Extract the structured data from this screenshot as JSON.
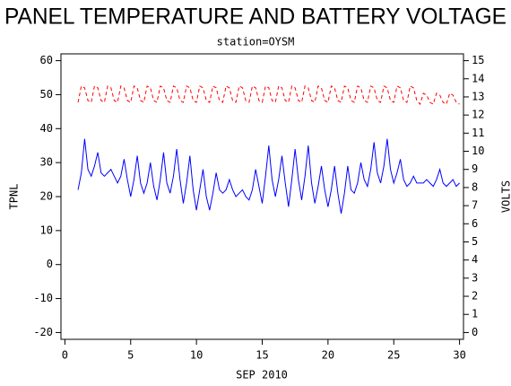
{
  "chart_data": {
    "type": "line",
    "title": "PANEL TEMPERATURE AND BATTERY VOLTAGE",
    "subtitle": "station=OYSM",
    "xlabel": "SEP 2010",
    "ylabel": "TPNL",
    "y2label": "VOLTS",
    "xlim": [
      -0.3,
      30.3
    ],
    "xticks": [
      0,
      5,
      10,
      15,
      20,
      25,
      30
    ],
    "ylim": [
      -22,
      62
    ],
    "yticks": [
      -20,
      -10,
      0,
      10,
      20,
      30,
      40,
      50,
      60
    ],
    "y2lim": [
      -0.375,
      15.375
    ],
    "y2ticks": [
      0,
      1,
      2,
      3,
      4,
      5,
      6,
      7,
      8,
      9,
      10,
      11,
      12,
      13,
      14,
      15
    ],
    "x": [
      1,
      1.25,
      1.5,
      1.75,
      2,
      2.25,
      2.5,
      2.75,
      3,
      3.25,
      3.5,
      3.75,
      4,
      4.25,
      4.5,
      4.75,
      5,
      5.25,
      5.5,
      5.75,
      6,
      6.25,
      6.5,
      6.75,
      7,
      7.25,
      7.5,
      7.75,
      8,
      8.25,
      8.5,
      8.75,
      9,
      9.25,
      9.5,
      9.75,
      10,
      10.25,
      10.5,
      10.75,
      11,
      11.25,
      11.5,
      11.75,
      12,
      12.25,
      12.5,
      12.75,
      13,
      13.25,
      13.5,
      13.75,
      14,
      14.25,
      14.5,
      14.75,
      15,
      15.25,
      15.5,
      15.75,
      16,
      16.25,
      16.5,
      16.75,
      17,
      17.25,
      17.5,
      17.75,
      18,
      18.25,
      18.5,
      18.75,
      19,
      19.25,
      19.5,
      19.75,
      20,
      20.25,
      20.5,
      20.75,
      21,
      21.25,
      21.5,
      21.75,
      22,
      22.25,
      22.5,
      22.75,
      23,
      23.25,
      23.5,
      23.75,
      24,
      24.25,
      24.5,
      24.75,
      25,
      25.25,
      25.5,
      25.75,
      26,
      26.25,
      26.5,
      26.75,
      27,
      27.25,
      27.5,
      27.75,
      28,
      28.25,
      28.5,
      28.75,
      29,
      29.25,
      29.5,
      29.75,
      30
    ],
    "series": [
      {
        "name": "TPNL",
        "color": "#0000ff",
        "dash": false,
        "values": [
          22,
          27,
          37,
          28,
          26,
          29,
          33,
          27,
          26,
          27,
          28,
          26,
          24,
          26,
          31,
          25,
          20,
          25,
          32,
          24,
          21,
          24,
          30,
          23,
          19,
          25,
          33,
          24,
          21,
          26,
          34,
          25,
          18,
          24,
          32,
          22,
          16,
          22,
          28,
          20,
          16,
          21,
          27,
          22,
          21,
          22,
          25,
          22,
          20,
          21,
          22,
          20,
          19,
          22,
          28,
          23,
          18,
          26,
          35,
          25,
          20,
          25,
          32,
          24,
          17,
          25,
          34,
          25,
          19,
          26,
          35,
          24,
          18,
          23,
          29,
          22,
          17,
          22,
          29,
          21,
          15,
          21,
          29,
          22,
          21,
          24,
          30,
          25,
          23,
          28,
          36,
          27,
          24,
          29,
          37,
          28,
          24,
          27,
          31,
          25,
          23,
          24,
          26,
          24,
          24,
          24,
          25,
          24,
          23,
          25,
          28,
          24,
          23,
          24,
          25,
          23,
          24
        ]
      },
      {
        "name": "VOLTS",
        "color": "#ff0000",
        "dash": true,
        "axis": "y2",
        "values": [
          12.7,
          13.6,
          13.5,
          12.8,
          12.7,
          13.6,
          13.5,
          12.8,
          12.7,
          13.6,
          13.5,
          12.8,
          12.7,
          13.6,
          13.5,
          12.8,
          12.7,
          13.6,
          13.5,
          12.8,
          12.7,
          13.6,
          13.5,
          12.8,
          12.7,
          13.6,
          13.5,
          12.8,
          12.7,
          13.6,
          13.5,
          12.8,
          12.7,
          13.6,
          13.5,
          12.8,
          12.7,
          13.6,
          13.5,
          12.8,
          12.7,
          13.6,
          13.5,
          12.8,
          12.7,
          13.6,
          13.5,
          12.8,
          12.7,
          13.6,
          13.5,
          12.8,
          12.7,
          13.6,
          13.5,
          12.8,
          12.7,
          13.6,
          13.5,
          12.8,
          12.7,
          13.6,
          13.5,
          12.8,
          12.7,
          13.6,
          13.5,
          12.8,
          12.7,
          13.6,
          13.5,
          12.8,
          12.7,
          13.6,
          13.5,
          12.8,
          12.7,
          13.6,
          13.5,
          12.8,
          12.7,
          13.6,
          13.5,
          12.8,
          12.7,
          13.6,
          13.5,
          12.8,
          12.7,
          13.6,
          13.5,
          12.8,
          12.7,
          13.6,
          13.5,
          12.8,
          12.7,
          13.6,
          13.5,
          12.8,
          12.7,
          13.6,
          13.5,
          12.8,
          12.6,
          13.2,
          13.1,
          12.7,
          12.6,
          13.2,
          13.1,
          12.7,
          12.6,
          13.2,
          13.1,
          12.7,
          12.6
        ]
      }
    ]
  }
}
